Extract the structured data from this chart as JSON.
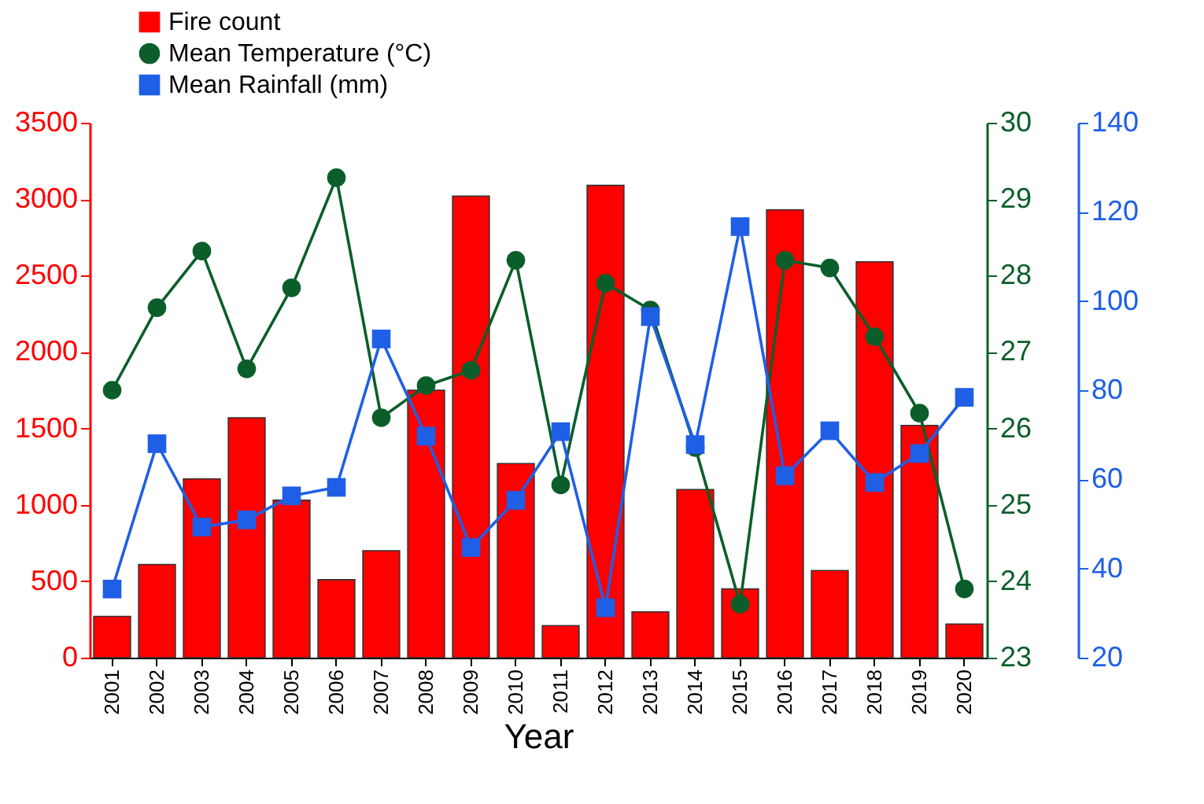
{
  "chart_data": {
    "type": "bar",
    "xlabel": "Year",
    "categories": [
      "2001",
      "2002",
      "2003",
      "2004",
      "2005",
      "2006",
      "2007",
      "2008",
      "2009",
      "2010",
      "2011",
      "2012",
      "2013",
      "2014",
      "2015",
      "2016",
      "2017",
      "2018",
      "2019",
      "2020"
    ],
    "series": [
      {
        "name": "Fire count",
        "color": "#ff0000",
        "values": [
          270,
          610,
          1170,
          1570,
          1030,
          510,
          700,
          1750,
          3020,
          1270,
          210,
          3090,
          300,
          1100,
          450,
          2930,
          570,
          2590,
          1520,
          220
        ]
      },
      {
        "name": "Mean Temperature (°C)",
        "type": "line",
        "axis": "y2",
        "marker": "circle",
        "color": "#0b5e2a",
        "values": [
          26.5,
          27.58,
          28.32,
          26.78,
          27.84,
          29.28,
          26.14,
          26.56,
          26.76,
          28.2,
          25.26,
          27.9,
          27.55,
          25.75,
          23.7,
          28.2,
          28.1,
          27.2,
          26.2,
          23.9
        ]
      },
      {
        "name": "Mean Rainfall (mm)",
        "type": "line",
        "axis": "y3",
        "marker": "square",
        "color": "#1f5fe6",
        "values": [
          35.4,
          68,
          49.3,
          50.9,
          56.3,
          58.2,
          91.5,
          69.7,
          44.7,
          55.3,
          70.7,
          31.2,
          96.5,
          67.8,
          116.7,
          60.8,
          70.9,
          59.3,
          65.8,
          78.4
        ]
      }
    ],
    "ylim": [
      0,
      3500
    ],
    "yticks": [
      0,
      500,
      1000,
      1500,
      2000,
      2500,
      3000,
      3500
    ],
    "y2lim": [
      23,
      30
    ],
    "y2ticks": [
      23,
      24,
      25,
      26,
      27,
      28,
      29,
      30
    ],
    "y3lim": [
      20,
      140
    ],
    "y3ticks": [
      20,
      40,
      60,
      80,
      100,
      120,
      140
    ],
    "legend": "top left"
  }
}
